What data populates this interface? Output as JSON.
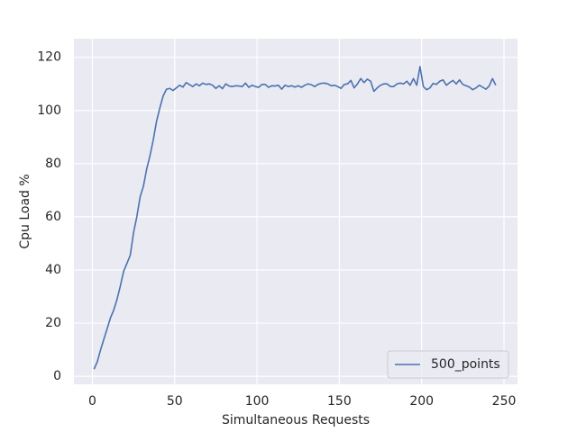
{
  "chart_data": {
    "type": "line",
    "xlabel": "Simultaneous Requests",
    "ylabel": "Cpu Load %",
    "x": [
      1,
      3,
      5,
      7,
      9,
      11,
      13,
      15,
      17,
      19,
      21,
      23,
      25,
      27,
      29,
      31,
      33,
      35,
      37,
      39,
      41,
      43,
      45,
      47,
      49,
      51,
      53,
      55,
      57,
      59,
      61,
      63,
      65,
      67,
      69,
      71,
      73,
      75,
      77,
      79,
      81,
      83,
      85,
      87,
      89,
      91,
      93,
      95,
      97,
      99,
      101,
      103,
      105,
      107,
      109,
      111,
      113,
      115,
      117,
      119,
      121,
      123,
      125,
      127,
      129,
      131,
      133,
      135,
      137,
      139,
      141,
      143,
      145,
      147,
      149,
      151,
      153,
      155,
      157,
      159,
      161,
      163,
      165,
      167,
      169,
      171,
      173,
      175,
      177,
      179,
      181,
      183,
      185,
      187,
      189,
      191,
      193,
      195,
      197,
      199,
      201,
      203,
      205,
      207,
      209,
      211,
      213,
      215,
      217,
      219,
      221,
      223,
      225,
      227,
      229,
      231,
      233,
      235,
      237,
      239,
      241,
      243,
      245
    ],
    "series": [
      {
        "name": "500_points",
        "color": "#4c72b0",
        "values": [
          2.7,
          5.5,
          10,
          14,
          18,
          22,
          25,
          29,
          34,
          39.5,
          42.5,
          45.5,
          54,
          60,
          67.5,
          71.5,
          78,
          83,
          89,
          96,
          101,
          105.5,
          108,
          108.3,
          107.5,
          108.5,
          109.5,
          108.8,
          110.5,
          109.7,
          109,
          110,
          109.3,
          110.3,
          109.8,
          110,
          109.5,
          108.3,
          109.3,
          108.2,
          110,
          109.2,
          109,
          109.3,
          109.2,
          109,
          110.3,
          108.7,
          109.5,
          109,
          108.7,
          109.8,
          109.8,
          108.7,
          109.3,
          109.2,
          109.5,
          108,
          109.5,
          109,
          109.3,
          108.8,
          109.3,
          108.7,
          109.5,
          110,
          109.7,
          109,
          109.8,
          110.2,
          110.3,
          110,
          109.3,
          109.5,
          109,
          108.3,
          109.8,
          110,
          111.3,
          108.5,
          110,
          112,
          110.5,
          111.8,
          111,
          107.2,
          108.5,
          109.5,
          110,
          110,
          109,
          109,
          110,
          110.3,
          110,
          111,
          109.5,
          112,
          109.5,
          116.5,
          109,
          107.8,
          108.5,
          110.2,
          109.8,
          111,
          111.5,
          109.5,
          110.5,
          111.3,
          110,
          111.5,
          109.8,
          109.3,
          108.8,
          107.8,
          108.5,
          109.5,
          108.8,
          108,
          109.2,
          112,
          109.5
        ]
      }
    ],
    "xlim": [
      -11.2,
      258.2
    ],
    "ylim": [
      -3,
      127
    ],
    "xticks": [
      0,
      50,
      100,
      150,
      200,
      250
    ],
    "yticks": [
      0,
      20,
      40,
      60,
      80,
      100,
      120
    ],
    "grid": true,
    "legend": "lower right"
  }
}
